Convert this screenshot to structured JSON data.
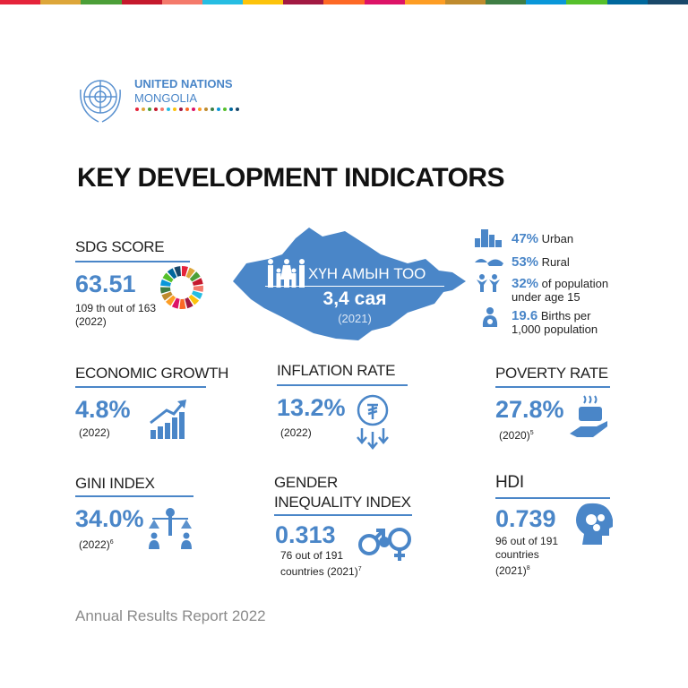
{
  "top_bar_colors": [
    "#e5243b",
    "#dda63a",
    "#4c9f38",
    "#c5192d",
    "#f47a6b",
    "#26bde2",
    "#fcc30b",
    "#a21942",
    "#fd6925",
    "#dd1367",
    "#fd9d24",
    "#bf8b2e",
    "#3f7e44",
    "#0a97d9",
    "#56c02b",
    "#00689d",
    "#19486a"
  ],
  "accent": "#4a86c8",
  "logo": {
    "line1": "UNITED NATIONS",
    "line2": "MONGOLIA"
  },
  "title": "KEY DEVELOPMENT INDICATORS",
  "sdg": {
    "label": "SDG SCORE",
    "value": "63.51",
    "note": "109 th out of 163",
    "year": "(2022)"
  },
  "population": {
    "label": "ХҮН АМЫН ТОО",
    "value": "3,4 сая",
    "year": "(2021)"
  },
  "pop_stats": [
    {
      "icon": "city-icon",
      "value": "47%",
      "text": "Urban"
    },
    {
      "icon": "ger-icon",
      "value": "53%",
      "text": "Rural"
    },
    {
      "icon": "children-icon",
      "value": "32%",
      "text": "of population",
      "text2": "under age 15"
    },
    {
      "icon": "mother-baby-icon",
      "value": "19.6",
      "text": "Births per",
      "text2": "1,000 population"
    }
  ],
  "economic": {
    "label": "ECONOMIC GROWTH",
    "value": "4.8%",
    "year": "(2022)"
  },
  "inflation": {
    "label": "INFLATION RATE",
    "value": "13.2%",
    "year": "(2022)"
  },
  "poverty": {
    "label": "POVERTY RATE",
    "value": "27.8%",
    "year": "(2020)",
    "sup": "5"
  },
  "gini": {
    "label": "GINI INDEX",
    "value": "34.0%",
    "year": "(2022)",
    "sup": "6"
  },
  "gender": {
    "label1": "GENDER",
    "label2": "INEQUALITY INDEX",
    "value": "0.313",
    "note1": "76 out of 191",
    "note2": "countries (2021)",
    "sup": "7"
  },
  "hdi": {
    "label": "HDI",
    "value": "0.739",
    "note1": "96 out of 191",
    "note2": "countries",
    "note3": "(2021)",
    "sup": "8"
  },
  "footer": "Annual Results Report 2022"
}
